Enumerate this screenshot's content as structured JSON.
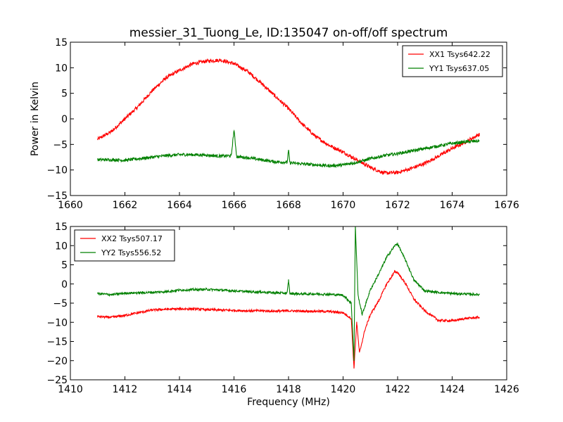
{
  "chart_data": [
    {
      "type": "line",
      "title": "messier_31_Tuong_Le, ID:135047 on-off/off spectrum",
      "xlabel": "",
      "ylabel": "Power in Kelvin",
      "xlim": [
        1660,
        1676
      ],
      "ylim": [
        -15,
        15
      ],
      "xticks": [
        "1660",
        "1662",
        "1664",
        "1666",
        "1668",
        "1670",
        "1672",
        "1674",
        "1676"
      ],
      "yticks": [
        "15",
        "10",
        "5",
        "0",
        "−5",
        "−10",
        "−15"
      ],
      "grid": false,
      "legend_position": "top-right",
      "series": [
        {
          "name": "XX1 Tsys642.22",
          "color": "#ff0000",
          "x": [
            1661.0,
            1661.5,
            1662.0,
            1662.5,
            1663.0,
            1663.5,
            1664.0,
            1664.5,
            1665.0,
            1665.5,
            1666.0,
            1666.5,
            1667.0,
            1667.5,
            1668.0,
            1668.5,
            1669.0,
            1669.5,
            1670.0,
            1670.5,
            1671.0,
            1671.5,
            1672.0,
            1672.5,
            1673.0,
            1673.5,
            1674.0,
            1674.5,
            1675.0
          ],
          "y": [
            -4.0,
            -2.5,
            0.0,
            2.5,
            5.5,
            8.0,
            9.5,
            10.8,
            11.3,
            11.5,
            10.8,
            9.3,
            7.0,
            4.5,
            2.0,
            -1.0,
            -3.5,
            -5.2,
            -6.5,
            -8.0,
            -9.5,
            -10.6,
            -10.5,
            -9.7,
            -8.7,
            -7.3,
            -5.8,
            -4.5,
            -3.0
          ]
        },
        {
          "name": "YY1 Tsys637.05",
          "color": "#008000",
          "x": [
            1661.0,
            1661.5,
            1662.0,
            1662.5,
            1663.0,
            1663.5,
            1664.0,
            1664.5,
            1665.0,
            1665.5,
            1665.9,
            1666.0,
            1666.1,
            1666.5,
            1667.0,
            1667.5,
            1667.95,
            1668.0,
            1668.05,
            1668.5,
            1669.0,
            1669.5,
            1670.0,
            1670.5,
            1671.0,
            1671.5,
            1672.0,
            1672.5,
            1673.0,
            1673.5,
            1674.0,
            1674.5,
            1675.0
          ],
          "y": [
            -8.0,
            -8.0,
            -8.1,
            -7.8,
            -7.5,
            -7.2,
            -7.0,
            -7.0,
            -7.1,
            -7.3,
            -7.2,
            -2.2,
            -7.4,
            -7.6,
            -8.0,
            -8.4,
            -8.5,
            -6.2,
            -8.6,
            -8.8,
            -9.0,
            -9.2,
            -9.0,
            -8.5,
            -7.8,
            -7.2,
            -6.8,
            -6.3,
            -5.8,
            -5.3,
            -4.8,
            -4.5,
            -4.3
          ]
        }
      ]
    },
    {
      "type": "line",
      "title": "",
      "xlabel": "Frequency (MHz)",
      "ylabel": "",
      "xlim": [
        1410,
        1426
      ],
      "ylim": [
        -25,
        15
      ],
      "xticks": [
        "1410",
        "1412",
        "1414",
        "1416",
        "1418",
        "1420",
        "1422",
        "1424",
        "1426"
      ],
      "yticks": [
        "15",
        "10",
        "5",
        "0",
        "−5",
        "−10",
        "−15",
        "−20",
        "−25"
      ],
      "grid": false,
      "legend_position": "top-left",
      "series": [
        {
          "name": "XX2 Tsys507.17",
          "color": "#ff0000",
          "x": [
            1411.0,
            1411.5,
            1412.0,
            1412.5,
            1413.0,
            1413.5,
            1414.0,
            1414.5,
            1415.0,
            1415.5,
            1416.0,
            1416.5,
            1417.0,
            1417.5,
            1418.0,
            1418.5,
            1419.0,
            1419.5,
            1420.0,
            1420.3,
            1420.4,
            1420.5,
            1420.6,
            1420.8,
            1421.0,
            1421.3,
            1421.6,
            1421.9,
            1422.0,
            1422.3,
            1422.6,
            1423.0,
            1423.5,
            1424.0,
            1424.5,
            1425.0
          ],
          "y": [
            -8.5,
            -8.7,
            -8.2,
            -7.5,
            -6.8,
            -6.6,
            -6.5,
            -6.5,
            -6.7,
            -6.8,
            -6.9,
            -7.0,
            -7.0,
            -7.1,
            -7.0,
            -7.1,
            -7.1,
            -7.2,
            -7.5,
            -9.0,
            -22.0,
            -10.0,
            -18.0,
            -12.0,
            -8.0,
            -4.5,
            0.0,
            3.2,
            3.0,
            0.0,
            -4.0,
            -7.0,
            -9.5,
            -9.6,
            -9.0,
            -8.7
          ]
        },
        {
          "name": "YY2 Tsys556.52",
          "color": "#008000",
          "x": [
            1411.0,
            1411.5,
            1412.0,
            1412.5,
            1413.0,
            1413.5,
            1414.0,
            1414.5,
            1415.0,
            1415.5,
            1416.0,
            1416.5,
            1417.0,
            1417.5,
            1417.95,
            1418.0,
            1418.05,
            1418.5,
            1419.0,
            1419.5,
            1420.0,
            1420.3,
            1420.4,
            1420.45,
            1420.55,
            1420.7,
            1421.0,
            1421.3,
            1421.6,
            1421.9,
            1422.0,
            1422.3,
            1422.6,
            1423.0,
            1423.5,
            1424.0,
            1424.5,
            1425.0
          ],
          "y": [
            -2.5,
            -2.8,
            -2.4,
            -2.3,
            -2.2,
            -2.0,
            -1.6,
            -1.5,
            -1.4,
            -1.6,
            -1.8,
            -2.0,
            -2.1,
            -2.3,
            -2.4,
            1.0,
            -2.5,
            -2.6,
            -2.6,
            -2.7,
            -2.9,
            -5.0,
            -20.0,
            15.0,
            -3.0,
            -8.0,
            -1.5,
            2.5,
            7.0,
            10.0,
            10.5,
            6.0,
            1.0,
            -1.8,
            -2.2,
            -2.5,
            -2.6,
            -2.8
          ]
        }
      ]
    }
  ]
}
